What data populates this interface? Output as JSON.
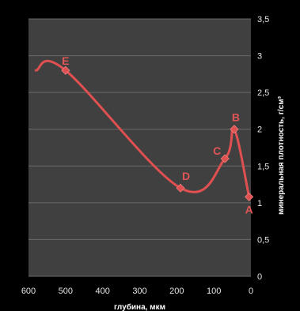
{
  "chart_data": {
    "type": "line",
    "xlabel": "глубина, мкм",
    "ylabel": "минеральная плотность, г/см³",
    "xlim": [
      600,
      0
    ],
    "ylim": [
      0,
      3.5
    ],
    "x_ticks": [
      "600",
      "500",
      "400",
      "300",
      "200",
      "100",
      "0"
    ],
    "y_ticks": [
      "0",
      "0,5",
      "1",
      "1,5",
      "2",
      "2,5",
      "3",
      "3,5"
    ],
    "grid": true,
    "plot_background": "#404040",
    "background": "#000000",
    "series": [
      {
        "color": "#e05050",
        "x": [
          580,
          500,
          190,
          70,
          45,
          5
        ],
        "y": [
          2.8,
          2.8,
          1.2,
          1.6,
          2.0,
          1.08
        ],
        "markers": [
          false,
          true,
          true,
          true,
          true,
          true
        ]
      }
    ],
    "point_labels": [
      {
        "text": "E",
        "x": 500,
        "y": 2.8
      },
      {
        "text": "D",
        "x": 190,
        "y": 1.2
      },
      {
        "text": "C",
        "x": 70,
        "y": 1.6
      },
      {
        "text": "B",
        "x": 45,
        "y": 2.0
      },
      {
        "text": "A",
        "x": 5,
        "y": 1.08
      }
    ]
  }
}
